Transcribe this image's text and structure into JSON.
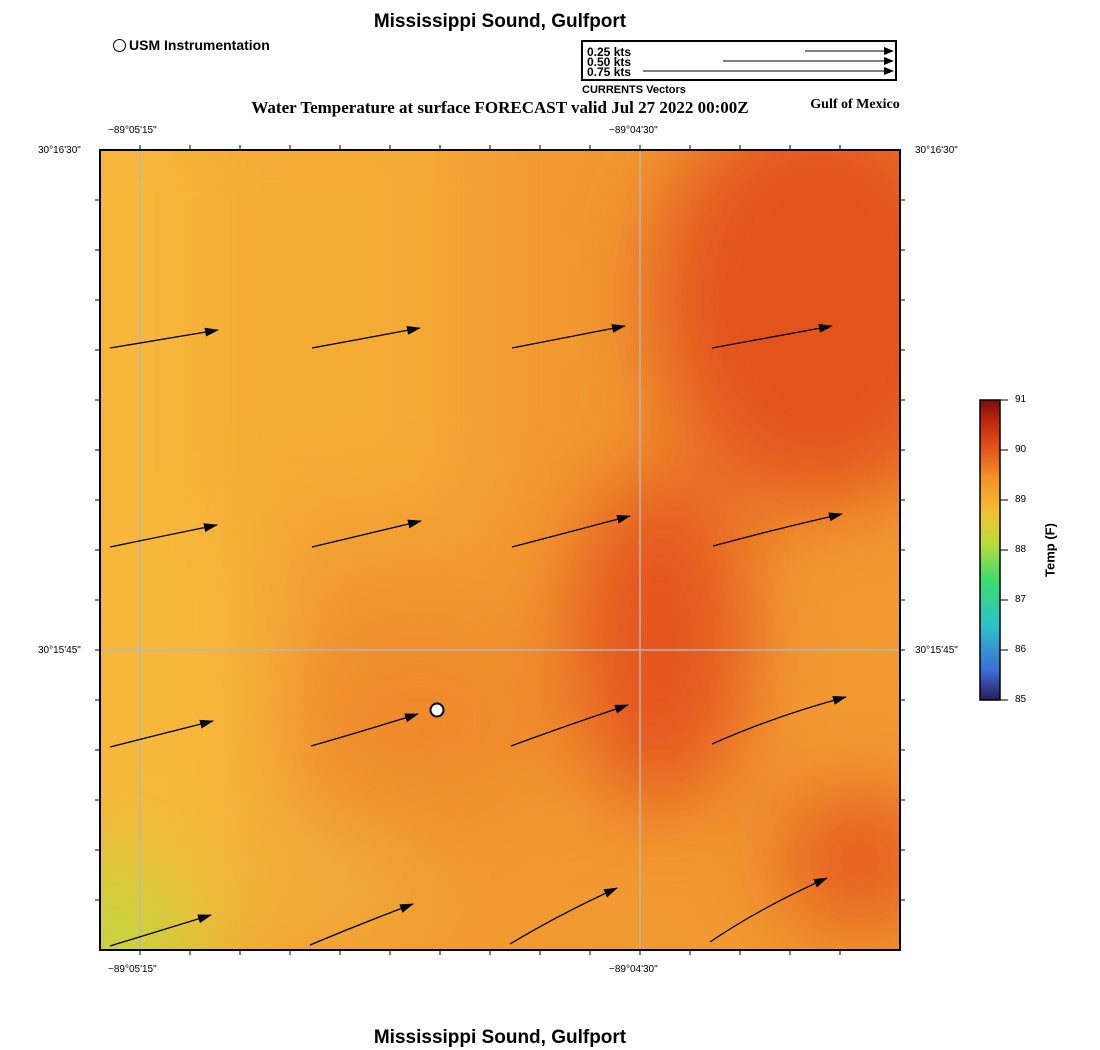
{
  "header": {
    "title": "Mississippi Sound, Gulfport",
    "subtitle": "Water Temperature at surface FORECAST valid Jul 27 2022 00:00Z",
    "region": "Gulf of Mexico"
  },
  "footer": {
    "title": "Mississippi Sound, Gulfport"
  },
  "legend": {
    "station_label": "USM Instrumentation",
    "vectors": {
      "caption": "CURRENTS Vectors",
      "labels": [
        "0.25 kts",
        "0.50 kts",
        "0.75 kts"
      ]
    }
  },
  "axes": {
    "x_ticks": [
      "−89°05'15\"",
      "−89°04'30\""
    ],
    "y_ticks": [
      "30°16'30\"",
      "30°15'45\""
    ]
  },
  "colorbar": {
    "label": "Temp (F)",
    "ticks": [
      "91",
      "90",
      "89",
      "88",
      "87",
      "86",
      "85"
    ],
    "min": 85,
    "max": 91,
    "colors": [
      "#2b1a5a",
      "#3b6fd6",
      "#2cc3c8",
      "#3ddc6e",
      "#b9dc3a",
      "#f1c232",
      "#f39325",
      "#e2521a",
      "#c0270f",
      "#7b0d0d"
    ]
  },
  "map": {
    "temperature_colors": {
      "warm_yellow": "#f6b43a",
      "orange": "#f29030",
      "dark_orange": "#e4521a",
      "green_yellow": "#cdd53c"
    },
    "station_icon": "station-marker"
  }
}
